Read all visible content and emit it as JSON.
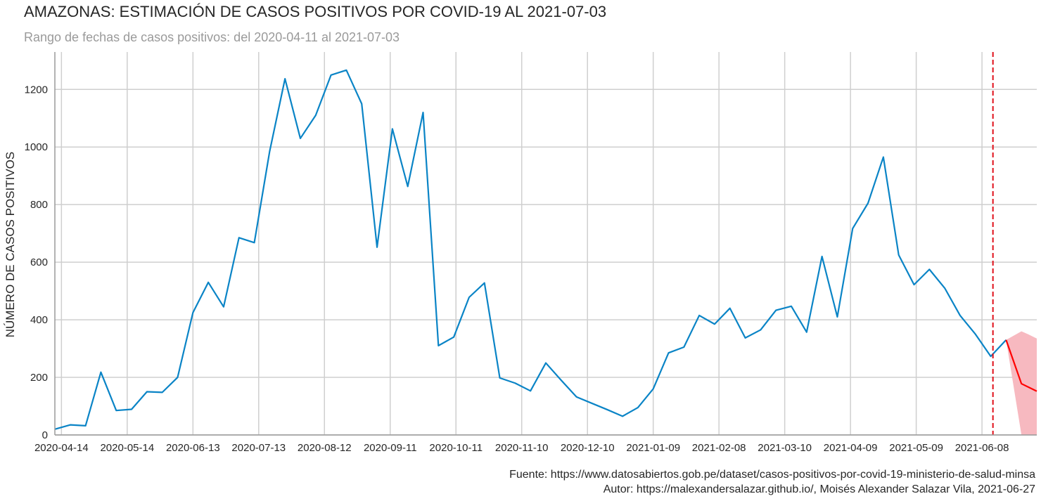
{
  "header": {
    "title": "AMAZONAS: ESTIMACIÓN DE CASOS POSITIVOS POR COVID-19 AL 2021-07-03",
    "subtitle": "Rango de fechas de casos positivos: del 2020-04-11 al 2021-07-03"
  },
  "footer": {
    "source": "Fuente: https://www.datosabiertos.gob.pe/dataset/casos-positivos-por-covid-19-ministerio-de-salud-minsa",
    "author": "Autor: https://malexandersalazar.github.io/, Moisés Alexander Salazar Vila, 2021-06-27"
  },
  "colors": {
    "observed": "#0a84c6",
    "forecast": "#ff0000",
    "band": "#f7b9c0",
    "cutoff": "#e0101a",
    "grid": "#cfcfcf"
  },
  "chart_data": {
    "type": "line",
    "xlabel": "",
    "ylabel": "NÚMERO DE CASOS POSITIVOS",
    "xlim": [
      "2020-04-11",
      "2021-07-03"
    ],
    "ylim": [
      0,
      1330
    ],
    "yticks": [
      0,
      200,
      400,
      600,
      800,
      1000,
      1200
    ],
    "xticks": [
      "2020-04-14",
      "2020-05-14",
      "2020-06-13",
      "2020-07-13",
      "2020-08-12",
      "2020-09-11",
      "2020-10-11",
      "2020-11-10",
      "2020-12-10",
      "2021-01-09",
      "2021-02-08",
      "2021-03-10",
      "2021-04-09",
      "2021-05-09",
      "2021-06-08"
    ],
    "grid": true,
    "cutoff_date": "2021-06-13",
    "series": [
      {
        "x": [
          "2020-04-11",
          "2020-04-18",
          "2020-04-25",
          "2020-05-02",
          "2020-05-09",
          "2020-05-16",
          "2020-05-23",
          "2020-05-30",
          "2020-06-06",
          "2020-06-13",
          "2020-06-20",
          "2020-06-27",
          "2020-07-04",
          "2020-07-11",
          "2020-07-18",
          "2020-07-25",
          "2020-08-01",
          "2020-08-08",
          "2020-08-15",
          "2020-08-22",
          "2020-08-29",
          "2020-09-05",
          "2020-09-12",
          "2020-09-19",
          "2020-09-26",
          "2020-10-03",
          "2020-10-10",
          "2020-10-17",
          "2020-10-24",
          "2020-10-31",
          "2020-11-07",
          "2020-11-14",
          "2020-11-21",
          "2020-11-28",
          "2020-12-05",
          "2020-12-12",
          "2020-12-19",
          "2020-12-26",
          "2021-01-02",
          "2021-01-09",
          "2021-01-16",
          "2021-01-23",
          "2021-01-30",
          "2021-02-06",
          "2021-02-13",
          "2021-02-20",
          "2021-02-27",
          "2021-03-06",
          "2021-03-13",
          "2021-03-20",
          "2021-03-27",
          "2021-04-03",
          "2021-04-10",
          "2021-04-17",
          "2021-04-24",
          "2021-05-01",
          "2021-05-08",
          "2021-05-15",
          "2021-05-22",
          "2021-05-29",
          "2021-06-05",
          "2021-06-12",
          "2021-06-19"
        ],
        "values": [
          20,
          35,
          32,
          218,
          85,
          89,
          150,
          148,
          200,
          425,
          530,
          445,
          685,
          668,
          985,
          1237,
          1030,
          1110,
          1250,
          1267,
          1150,
          652,
          1063,
          863,
          1120,
          310,
          340,
          478,
          528,
          198,
          180,
          153,
          250,
          190,
          132,
          110,
          88,
          65,
          95,
          160,
          285,
          305,
          415,
          385,
          440,
          337,
          365,
          433,
          447,
          357,
          620,
          410,
          717,
          805,
          965,
          625,
          522,
          575,
          510,
          415,
          350,
          273,
          330
        ]
      },
      {
        "x": [
          "2021-06-19",
          "2021-06-26",
          "2021-07-03"
        ],
        "values": [
          330,
          178,
          152
        ]
      },
      {
        "x": [
          "2021-06-19",
          "2021-06-26",
          "2021-06-29",
          "2021-07-03"
        ],
        "lower": [
          330,
          0,
          0,
          0
        ],
        "upper": [
          330,
          360,
          350,
          335
        ]
      }
    ]
  }
}
